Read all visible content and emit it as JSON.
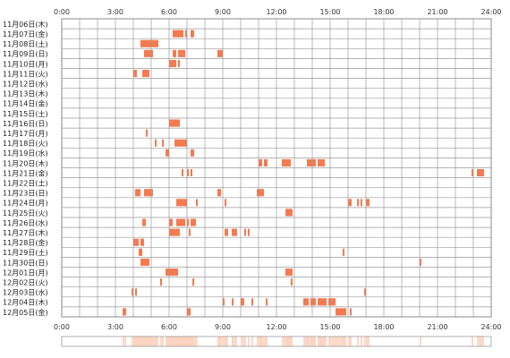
{
  "chart_data": {
    "type": "heatmap",
    "title": "",
    "xlabel": "",
    "ylabel": "",
    "x_ticks": [
      "0:00",
      "3:00",
      "6:00",
      "9:00",
      "12:00",
      "15:00",
      "18:00",
      "21:00",
      "24:00"
    ],
    "xlim_hours": [
      0,
      24
    ],
    "grid": true,
    "mark_color": "#f47a50",
    "summary_color": "#fbd2bf",
    "rows": [
      {
        "label": "11月06日(木)",
        "segments": []
      },
      {
        "label": "11月07日(金)",
        "segments": [
          [
            6.2,
            6.8
          ],
          [
            6.9,
            7.0
          ],
          [
            7.2,
            7.4
          ]
        ]
      },
      {
        "label": "11月08日(土)",
        "segments": [
          [
            4.4,
            5.4
          ]
        ]
      },
      {
        "label": "11月09日(日)",
        "segments": [
          [
            4.6,
            5.1
          ],
          [
            6.2,
            6.4
          ],
          [
            6.5,
            6.9
          ],
          [
            8.7,
            9.0
          ]
        ]
      },
      {
        "label": "11月10日(月)",
        "segments": [
          [
            6.0,
            6.4
          ],
          [
            6.5,
            6.6
          ]
        ]
      },
      {
        "label": "11月11日(火)",
        "segments": [
          [
            4.0,
            4.2
          ],
          [
            4.5,
            4.9
          ]
        ]
      },
      {
        "label": "11月12日(水)",
        "segments": []
      },
      {
        "label": "11月13日(木)",
        "segments": []
      },
      {
        "label": "11月14日(金)",
        "segments": []
      },
      {
        "label": "11月15日(土)",
        "segments": []
      },
      {
        "label": "11月16日(日)",
        "segments": [
          [
            6.0,
            6.6
          ]
        ]
      },
      {
        "label": "11月17日(月)",
        "segments": [
          [
            4.7,
            4.8
          ]
        ]
      },
      {
        "label": "11月18日(火)",
        "segments": [
          [
            5.2,
            5.3
          ],
          [
            5.6,
            5.7
          ],
          [
            6.3,
            6.9
          ],
          [
            6.9,
            7.0
          ]
        ]
      },
      {
        "label": "11月19日(水)",
        "segments": [
          [
            5.8,
            6.0
          ],
          [
            7.2,
            7.4
          ]
        ]
      },
      {
        "label": "11月20日(木)",
        "segments": [
          [
            11.0,
            11.2
          ],
          [
            11.3,
            11.5
          ],
          [
            12.3,
            12.8
          ],
          [
            13.7,
            14.2
          ],
          [
            14.3,
            14.7
          ]
        ]
      },
      {
        "label": "11月21日(金)",
        "segments": [
          [
            6.7,
            6.8
          ],
          [
            7.0,
            7.1
          ],
          [
            7.2,
            7.3
          ],
          [
            22.9,
            23.0
          ],
          [
            23.2,
            23.6
          ]
        ]
      },
      {
        "label": "11月22日(土)",
        "segments": []
      },
      {
        "label": "11月23日(日)",
        "segments": [
          [
            4.1,
            4.4
          ],
          [
            4.6,
            5.1
          ],
          [
            8.7,
            8.9
          ],
          [
            10.9,
            11.3
          ]
        ]
      },
      {
        "label": "11月24日(月)",
        "segments": [
          [
            6.4,
            6.9
          ],
          [
            6.9,
            7.0
          ],
          [
            7.5,
            7.6
          ],
          [
            9.1,
            9.2
          ],
          [
            16.0,
            16.2
          ],
          [
            16.5,
            16.6
          ],
          [
            16.7,
            16.8
          ],
          [
            17.0,
            17.2
          ]
        ]
      },
      {
        "label": "11月25日(火)",
        "segments": [
          [
            12.5,
            12.9
          ]
        ]
      },
      {
        "label": "11月26日(水)",
        "segments": [
          [
            4.5,
            4.7
          ],
          [
            6.0,
            6.2
          ],
          [
            6.4,
            6.9
          ],
          [
            7.0,
            7.1
          ],
          [
            7.2,
            7.5
          ]
        ]
      },
      {
        "label": "11月27日(木)",
        "segments": [
          [
            6.0,
            6.6
          ],
          [
            7.1,
            7.2
          ],
          [
            9.1,
            9.3
          ],
          [
            9.5,
            9.8
          ],
          [
            10.2,
            10.3
          ],
          [
            10.4,
            10.5
          ]
        ]
      },
      {
        "label": "11月28日(金)",
        "segments": [
          [
            4.0,
            4.3
          ],
          [
            4.4,
            4.6
          ]
        ]
      },
      {
        "label": "11月29日(土)",
        "segments": [
          [
            4.3,
            4.5
          ],
          [
            15.7,
            15.8
          ]
        ]
      },
      {
        "label": "11月30日(日)",
        "segments": [
          [
            4.4,
            4.9
          ],
          [
            20.0,
            20.1
          ]
        ]
      },
      {
        "label": "12月01日(月)",
        "segments": [
          [
            5.8,
            6.5
          ],
          [
            12.5,
            12.9
          ]
        ]
      },
      {
        "label": "12月02日(火)",
        "segments": [
          [
            5.5,
            5.6
          ],
          [
            7.3,
            7.4
          ],
          [
            12.8,
            12.9
          ]
        ]
      },
      {
        "label": "12月03日(水)",
        "segments": [
          [
            3.9,
            4.0
          ],
          [
            4.1,
            4.2
          ],
          [
            16.9,
            17.0
          ]
        ]
      },
      {
        "label": "12月04日(木)",
        "segments": [
          [
            9.0,
            9.1
          ],
          [
            9.5,
            9.6
          ],
          [
            10.0,
            10.2
          ],
          [
            10.6,
            10.7
          ],
          [
            11.4,
            11.5
          ],
          [
            13.5,
            13.8
          ],
          [
            13.9,
            14.2
          ],
          [
            14.3,
            14.8
          ],
          [
            14.9,
            15.3
          ]
        ]
      },
      {
        "label": "12月05日(金)",
        "segments": [
          [
            3.4,
            3.6
          ],
          [
            7.0,
            7.2
          ],
          [
            15.3,
            15.9
          ],
          [
            16.1,
            16.2
          ]
        ]
      }
    ]
  }
}
